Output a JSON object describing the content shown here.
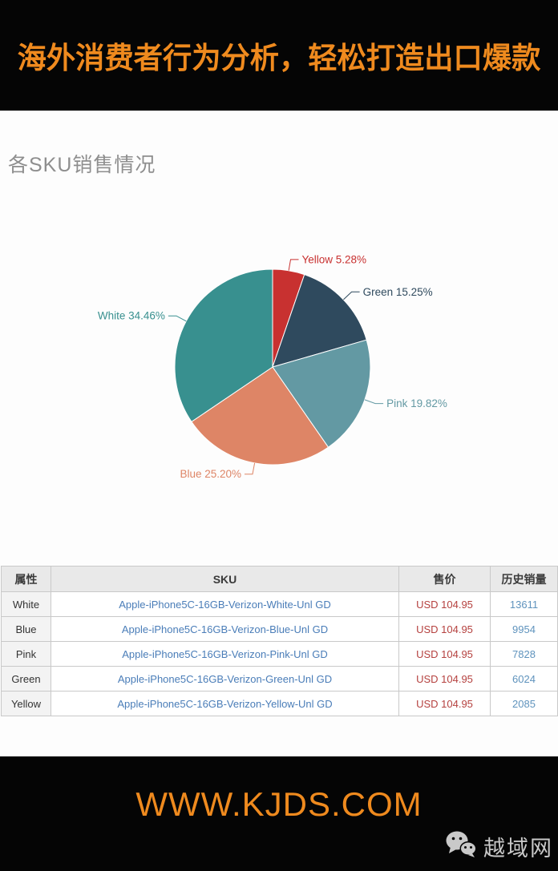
{
  "header": {
    "title": "海外消费者行为分析，轻松打造出口爆款",
    "color": "#ef8a1e",
    "background": "#050505"
  },
  "section": {
    "title": "各SKU销售情况",
    "title_color": "#8e8e8e"
  },
  "chart_data": {
    "type": "pie",
    "title": "各SKU销售情况",
    "start_angle_deg": 0,
    "direction": "clockwise",
    "labels": "outside-with-leader-lines",
    "legend_position": "none",
    "slices": [
      {
        "label": "Yellow",
        "value": 5.28,
        "display": "Yellow 5.28%",
        "color": "#c83130"
      },
      {
        "label": "Green",
        "value": 15.25,
        "display": "Green 15.25%",
        "color": "#2f4a5e"
      },
      {
        "label": "Pink",
        "value": 19.82,
        "display": "Pink 19.82%",
        "color": "#6399a3"
      },
      {
        "label": "Blue",
        "value": 25.2,
        "display": "Blue 25.20%",
        "color": "#de8566"
      },
      {
        "label": "White",
        "value": 34.46,
        "display": "White 34.46%",
        "color": "#38908f"
      }
    ]
  },
  "table": {
    "headers": [
      "属性",
      "SKU",
      "售价",
      "历史销量"
    ],
    "rows": [
      {
        "attr": "White",
        "sku": "Apple-iPhone5C-16GB-Verizon-White-Unl GD",
        "price": "USD 104.95",
        "sales": "13611"
      },
      {
        "attr": "Blue",
        "sku": "Apple-iPhone5C-16GB-Verizon-Blue-Unl GD",
        "price": "USD 104.95",
        "sales": "9954"
      },
      {
        "attr": "Pink",
        "sku": "Apple-iPhone5C-16GB-Verizon-Pink-Unl GD",
        "price": "USD 104.95",
        "sales": "7828"
      },
      {
        "attr": "Green",
        "sku": "Apple-iPhone5C-16GB-Verizon-Green-Unl GD",
        "price": "USD 104.95",
        "sales": "6024"
      },
      {
        "attr": "Yellow",
        "sku": "Apple-iPhone5C-16GB-Verizon-Yellow-Unl GD",
        "price": "USD 104.95",
        "sales": "2085"
      }
    ],
    "colors": {
      "sku_link": "#4a7db8",
      "price": "#b5413f",
      "sales": "#5f93bd",
      "header_bg": "#e9e9e9",
      "border": "#c9c9c9"
    }
  },
  "footer": {
    "site": "WWW.KJDS.COM",
    "site_color": "#ef8a1e",
    "watermark": "越域网",
    "watermark_icon": "wechat-icon"
  }
}
